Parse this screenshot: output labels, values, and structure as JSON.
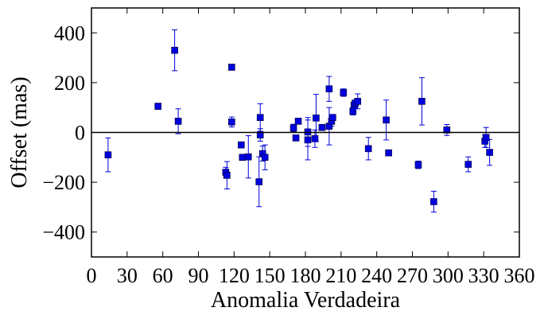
{
  "chart_data": {
    "type": "scatter",
    "title": "",
    "xlabel": "Anomalia Verdadeira",
    "ylabel": "Offset (mas)",
    "xlim": [
      0,
      360
    ],
    "ylim": [
      -500,
      500
    ],
    "xticks": [
      0,
      30,
      60,
      90,
      120,
      150,
      180,
      210,
      240,
      270,
      300,
      330,
      360
    ],
    "yticks": [
      -400,
      -200,
      0,
      200,
      400
    ],
    "xtick_labels": [
      "0",
      "30",
      "60",
      "90",
      "120",
      "150",
      "180",
      "210",
      "240",
      "270",
      "300",
      "330",
      "360"
    ],
    "ytick_labels": [
      "−400",
      "−200",
      "0",
      "200",
      "400"
    ],
    "grid": false,
    "reference_line_y": 0,
    "marker": "square",
    "series": [
      {
        "color": "#0000dd",
        "points": [
          {
            "x": 14,
            "y": -90,
            "err": 68
          },
          {
            "x": 56,
            "y": 105,
            "err": 12
          },
          {
            "x": 70,
            "y": 330,
            "err": 82
          },
          {
            "x": 73,
            "y": 45,
            "err": 50
          },
          {
            "x": 113,
            "y": -160,
            "err": 20
          },
          {
            "x": 114,
            "y": -172,
            "err": 55
          },
          {
            "x": 118,
            "y": 262,
            "err": 8
          },
          {
            "x": 118,
            "y": 42,
            "err": 20
          },
          {
            "x": 126,
            "y": -50,
            "err": 8
          },
          {
            "x": 127,
            "y": -100,
            "err": 10
          },
          {
            "x": 132,
            "y": -98,
            "err": 85
          },
          {
            "x": 141,
            "y": -198,
            "err": 100
          },
          {
            "x": 142,
            "y": 60,
            "err": 55
          },
          {
            "x": 142,
            "y": -10,
            "err": 25
          },
          {
            "x": 144,
            "y": -85,
            "err": 30
          },
          {
            "x": 146,
            "y": -100,
            "err": 50
          },
          {
            "x": 170,
            "y": 18,
            "err": 15
          },
          {
            "x": 172,
            "y": -22,
            "err": 8
          },
          {
            "x": 174,
            "y": 45,
            "err": 10
          },
          {
            "x": 182,
            "y": 2,
            "err": 58
          },
          {
            "x": 182,
            "y": -30,
            "err": 80
          },
          {
            "x": 188,
            "y": -25,
            "err": 35
          },
          {
            "x": 189,
            "y": 58,
            "err": 95
          },
          {
            "x": 194,
            "y": 20,
            "err": 12
          },
          {
            "x": 200,
            "y": 175,
            "err": 50
          },
          {
            "x": 200,
            "y": 25,
            "err": 75
          },
          {
            "x": 202,
            "y": 45,
            "err": 20
          },
          {
            "x": 203,
            "y": 60,
            "err": 12
          },
          {
            "x": 212,
            "y": 160,
            "err": 15
          },
          {
            "x": 220,
            "y": 85,
            "err": 15
          },
          {
            "x": 221,
            "y": 110,
            "err": 12
          },
          {
            "x": 222,
            "y": 118,
            "err": 12
          },
          {
            "x": 224,
            "y": 125,
            "err": 30
          },
          {
            "x": 233,
            "y": -65,
            "err": 45
          },
          {
            "x": 248,
            "y": 50,
            "err": 80
          },
          {
            "x": 250,
            "y": -82,
            "err": 8
          },
          {
            "x": 275,
            "y": -130,
            "err": 15
          },
          {
            "x": 278,
            "y": 125,
            "err": 95
          },
          {
            "x": 288,
            "y": -278,
            "err": 42
          },
          {
            "x": 299,
            "y": 10,
            "err": 22
          },
          {
            "x": 317,
            "y": -128,
            "err": 30
          },
          {
            "x": 331,
            "y": -35,
            "err": 25
          },
          {
            "x": 332,
            "y": -20,
            "err": 40
          },
          {
            "x": 335,
            "y": -80,
            "err": 52
          }
        ]
      }
    ]
  }
}
